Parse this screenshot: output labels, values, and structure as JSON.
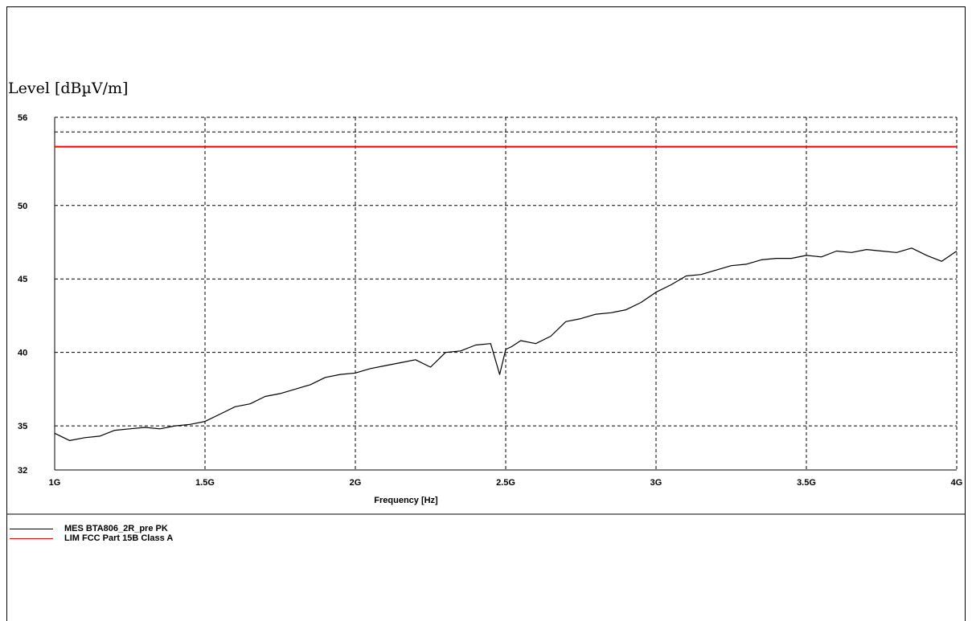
{
  "chart_data": {
    "type": "line",
    "ylabel": "Level [dBµV/m]",
    "xlabel": "Frequency [Hz]",
    "xlim": [
      1000000000,
      4000000000
    ],
    "ylim": [
      32,
      56
    ],
    "x_ticks": [
      1000000000,
      1500000000,
      2000000000,
      2500000000,
      3000000000,
      3500000000,
      4000000000
    ],
    "x_tick_labels": [
      "1G",
      "1.5G",
      "2G",
      "2.5G",
      "3G",
      "3.5G",
      "4G"
    ],
    "y_ticks": [
      32,
      35,
      40,
      45,
      50,
      56
    ],
    "y_tick_labels": [
      "32",
      "35",
      "40",
      "45",
      "50",
      "56"
    ],
    "grid": true,
    "legend_placement": "bottom-left",
    "series": [
      {
        "name": "MES BTA806_2R_pre PK",
        "color": "#000000",
        "x": [
          1000000000,
          1050000000,
          1100000000,
          1150000000,
          1200000000,
          1250000000,
          1300000000,
          1350000000,
          1400000000,
          1450000000,
          1500000000,
          1550000000,
          1600000000,
          1650000000,
          1700000000,
          1750000000,
          1800000000,
          1850000000,
          1900000000,
          1950000000,
          2000000000,
          2050000000,
          2100000000,
          2150000000,
          2200000000,
          2250000000,
          2300000000,
          2350000000,
          2400000000,
          2450000000,
          2480000000,
          2500000000,
          2520000000,
          2550000000,
          2600000000,
          2650000000,
          2700000000,
          2750000000,
          2800000000,
          2850000000,
          2900000000,
          2950000000,
          3000000000,
          3050000000,
          3100000000,
          3150000000,
          3200000000,
          3250000000,
          3300000000,
          3350000000,
          3400000000,
          3450000000,
          3500000000,
          3550000000,
          3600000000,
          3650000000,
          3700000000,
          3750000000,
          3800000000,
          3850000000,
          3900000000,
          3950000000,
          4000000000
        ],
        "y": [
          34.5,
          34.0,
          34.2,
          34.3,
          34.7,
          34.8,
          34.9,
          34.8,
          35.0,
          35.1,
          35.3,
          35.8,
          36.3,
          36.5,
          37.0,
          37.2,
          37.5,
          37.8,
          38.3,
          38.5,
          38.6,
          38.9,
          39.1,
          39.3,
          39.5,
          39.0,
          40.0,
          40.1,
          40.5,
          40.6,
          38.5,
          40.2,
          40.4,
          40.8,
          40.6,
          41.1,
          42.1,
          42.3,
          42.6,
          42.7,
          42.9,
          43.4,
          44.1,
          44.6,
          45.2,
          45.3,
          45.6,
          45.9,
          46.0,
          46.3,
          46.4,
          46.4,
          46.6,
          46.5,
          46.9,
          46.8,
          47.0,
          46.9,
          46.8,
          47.1,
          46.6,
          46.2,
          46.9
        ]
      },
      {
        "name": "LIM FCC Part 15B Class A",
        "color": "#ff0000",
        "x": [
          1000000000,
          4000000000
        ],
        "y": [
          54,
          54
        ]
      }
    ]
  }
}
